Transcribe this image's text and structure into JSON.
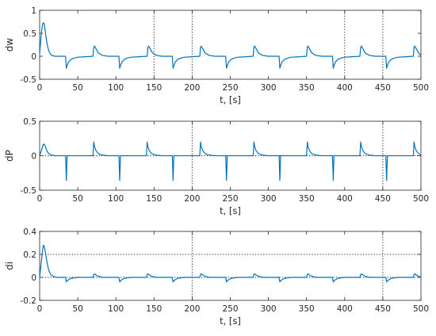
{
  "chart_data": [
    {
      "type": "line",
      "ylabel": "dw",
      "xlabel": "t, [s]",
      "xlim": [
        0,
        500
      ],
      "ylim": [
        -0.5,
        1
      ],
      "xticks": [
        "0",
        "50",
        "100",
        "150",
        "200",
        "250",
        "300",
        "350",
        "400",
        "450",
        "500"
      ],
      "yticks": [
        "-0.5",
        "0",
        "0.5",
        "1"
      ],
      "color": "#0072BD",
      "vlines": [
        150,
        200,
        400,
        450
      ],
      "hlines": [],
      "series": [
        {
          "x": [
            0,
            1,
            2,
            3,
            4,
            5,
            6,
            7,
            8,
            10,
            12,
            14,
            16,
            20,
            25,
            30,
            34,
            35,
            36,
            38,
            41,
            45,
            50,
            60,
            70,
            71,
            72,
            74,
            77,
            82,
            90,
            100,
            104,
            105,
            106,
            108,
            111,
            115,
            120,
            130,
            141,
            142,
            143,
            145,
            148,
            153,
            160,
            170,
            174,
            175,
            176,
            178,
            181,
            185,
            190,
            200,
            210,
            211,
            212,
            214,
            217,
            222,
            230,
            240,
            244,
            245,
            246,
            248,
            251,
            255,
            260,
            270,
            280,
            281,
            282,
            284,
            287,
            292,
            300,
            310,
            314,
            315,
            316,
            318,
            321,
            325,
            330,
            340,
            350,
            351,
            352,
            354,
            357,
            362,
            370,
            380,
            384,
            385,
            386,
            388,
            391,
            395,
            400,
            410,
            420,
            421,
            422,
            424,
            427,
            432,
            440,
            450,
            454,
            455,
            456,
            458,
            461,
            465,
            470,
            480,
            490,
            491,
            492,
            494,
            497,
            500
          ],
          "y": [
            0.05,
            0.25,
            0.45,
            0.6,
            0.7,
            0.73,
            0.7,
            0.6,
            0.45,
            0.25,
            0.12,
            0.05,
            0.02,
            0.0,
            0.0,
            0.0,
            0.0,
            -0.26,
            -0.2,
            -0.12,
            -0.07,
            -0.04,
            -0.02,
            -0.01,
            0.0,
            0.2,
            0.22,
            0.16,
            0.07,
            0.02,
            0.0,
            0.0,
            0.0,
            -0.26,
            -0.2,
            -0.12,
            -0.07,
            -0.04,
            -0.02,
            -0.01,
            0.0,
            0.2,
            0.22,
            0.16,
            0.07,
            0.02,
            0.0,
            0.0,
            0.0,
            -0.26,
            -0.2,
            -0.12,
            -0.07,
            -0.04,
            -0.02,
            -0.01,
            0.0,
            0.2,
            0.22,
            0.16,
            0.07,
            0.02,
            0.0,
            0.0,
            0.0,
            -0.26,
            -0.2,
            -0.12,
            -0.07,
            -0.04,
            -0.02,
            -0.01,
            0.0,
            0.2,
            0.22,
            0.16,
            0.07,
            0.02,
            0.0,
            0.0,
            0.0,
            -0.26,
            -0.2,
            -0.12,
            -0.07,
            -0.04,
            -0.02,
            -0.01,
            0.0,
            0.2,
            0.22,
            0.16,
            0.07,
            0.02,
            0.0,
            0.0,
            0.0,
            -0.26,
            -0.2,
            -0.12,
            -0.07,
            -0.04,
            -0.02,
            -0.01,
            0.0,
            0.2,
            0.22,
            0.16,
            0.07,
            0.02,
            0.0,
            0.0,
            0.0,
            -0.26,
            -0.2,
            -0.12,
            -0.07,
            -0.04,
            -0.02,
            -0.01,
            0.0,
            0.2,
            0.22,
            0.16,
            0.07,
            0.02
          ]
        }
      ]
    },
    {
      "type": "line",
      "ylabel": "dP",
      "xlabel": "t, [s]",
      "xlim": [
        0,
        500
      ],
      "ylim": [
        -0.5,
        0.5
      ],
      "xticks": [
        "0",
        "50",
        "100",
        "150",
        "200",
        "250",
        "300",
        "350",
        "400",
        "450",
        "500"
      ],
      "yticks": [
        "-0.5",
        "0",
        "0.5"
      ],
      "color": "#0072BD",
      "vlines": [
        200,
        450
      ],
      "hlines": [
        0
      ],
      "series": [
        {
          "x": [
            0,
            3,
            5,
            7,
            9,
            12,
            15,
            20,
            34,
            35,
            36,
            40,
            70,
            71,
            72,
            74,
            77,
            82,
            90,
            104,
            105,
            106,
            110,
            140,
            141,
            142,
            144,
            147,
            152,
            160,
            174,
            175,
            176,
            180,
            210,
            211,
            212,
            214,
            217,
            222,
            230,
            244,
            245,
            246,
            250,
            280,
            281,
            282,
            284,
            287,
            292,
            300,
            314,
            315,
            316,
            320,
            350,
            351,
            352,
            354,
            357,
            362,
            370,
            384,
            385,
            386,
            390,
            420,
            421,
            422,
            424,
            427,
            432,
            440,
            454,
            455,
            456,
            460,
            490,
            491,
            492,
            494,
            497,
            500
          ],
          "y": [
            0.0,
            0.1,
            0.17,
            0.15,
            0.08,
            0.03,
            0.01,
            0.0,
            0.0,
            -0.36,
            0.0,
            0.0,
            0.0,
            0.2,
            0.13,
            0.07,
            0.03,
            0.01,
            0.0,
            0.0,
            -0.36,
            0.0,
            0.0,
            0.0,
            0.2,
            0.13,
            0.07,
            0.03,
            0.01,
            0.0,
            0.0,
            -0.36,
            0.0,
            0.0,
            0.0,
            0.2,
            0.13,
            0.07,
            0.03,
            0.01,
            0.0,
            0.0,
            -0.36,
            0.0,
            0.0,
            0.0,
            0.2,
            0.13,
            0.07,
            0.03,
            0.01,
            0.0,
            0.0,
            -0.36,
            0.0,
            0.0,
            0.0,
            0.2,
            0.13,
            0.07,
            0.03,
            0.01,
            0.0,
            0.0,
            -0.36,
            0.0,
            0.0,
            0.0,
            0.2,
            0.13,
            0.07,
            0.03,
            0.01,
            0.0,
            0.0,
            -0.36,
            0.0,
            0.0,
            0.0,
            0.2,
            0.13,
            0.07,
            0.03,
            0.01
          ]
        }
      ]
    },
    {
      "type": "line",
      "ylabel": "di",
      "xlabel": "t, [s]",
      "xlim": [
        0,
        500
      ],
      "ylim": [
        -0.2,
        0.4
      ],
      "xticks": [
        "0",
        "50",
        "100",
        "150",
        "200",
        "250",
        "300",
        "350",
        "400",
        "450",
        "500"
      ],
      "yticks": [
        "-0.2",
        "0",
        "0.2",
        "0.4"
      ],
      "color": "#0072BD",
      "vlines": [
        200,
        450
      ],
      "hlines": [
        0.2,
        0
      ],
      "series": [
        {
          "x": [
            0,
            2,
            4,
            5,
            6,
            8,
            10,
            12,
            15,
            18,
            22,
            30,
            34,
            35,
            36,
            38,
            41,
            45,
            50,
            60,
            70,
            71,
            72,
            74,
            77,
            82,
            90,
            100,
            104,
            105,
            106,
            108,
            111,
            115,
            120,
            130,
            140,
            141,
            142,
            144,
            147,
            152,
            160,
            170,
            174,
            175,
            176,
            178,
            181,
            185,
            190,
            200,
            210,
            211,
            212,
            214,
            217,
            222,
            230,
            240,
            244,
            245,
            246,
            248,
            251,
            255,
            260,
            270,
            280,
            281,
            282,
            284,
            287,
            292,
            300,
            310,
            314,
            315,
            316,
            318,
            321,
            325,
            330,
            340,
            350,
            351,
            352,
            354,
            357,
            362,
            370,
            380,
            384,
            385,
            386,
            388,
            391,
            395,
            400,
            410,
            420,
            421,
            422,
            424,
            427,
            432,
            440,
            450,
            454,
            455,
            456,
            458,
            461,
            465,
            470,
            480,
            490,
            491,
            492,
            494,
            497,
            500
          ],
          "y": [
            0.0,
            0.12,
            0.24,
            0.28,
            0.27,
            0.2,
            0.12,
            0.06,
            0.02,
            0.01,
            0.0,
            0.0,
            0.0,
            -0.04,
            -0.03,
            -0.02,
            -0.01,
            -0.005,
            0.0,
            0.0,
            0.0,
            0.025,
            0.03,
            0.02,
            0.01,
            0.0,
            0.0,
            0.0,
            0.0,
            -0.04,
            -0.03,
            -0.02,
            -0.01,
            -0.005,
            0.0,
            0.0,
            0.0,
            0.025,
            0.03,
            0.02,
            0.01,
            0.0,
            0.0,
            0.0,
            0.0,
            -0.04,
            -0.03,
            -0.02,
            -0.01,
            -0.005,
            0.0,
            0.0,
            0.0,
            0.025,
            0.03,
            0.02,
            0.01,
            0.0,
            0.0,
            0.0,
            0.0,
            -0.04,
            -0.03,
            -0.02,
            -0.01,
            -0.005,
            0.0,
            0.0,
            0.0,
            0.025,
            0.03,
            0.02,
            0.01,
            0.0,
            0.0,
            0.0,
            0.0,
            -0.04,
            -0.03,
            -0.02,
            -0.01,
            -0.005,
            0.0,
            0.0,
            0.0,
            0.025,
            0.03,
            0.02,
            0.01,
            0.0,
            0.0,
            0.0,
            0.0,
            -0.04,
            -0.03,
            -0.02,
            -0.01,
            -0.005,
            0.0,
            0.0,
            0.0,
            0.025,
            0.03,
            0.02,
            0.01,
            0.0,
            0.0,
            0.0,
            0.0,
            -0.04,
            -0.03,
            -0.02,
            -0.01,
            -0.005,
            0.0,
            0.0,
            0.0,
            0.025,
            0.03,
            0.02,
            0.01,
            0.0
          ]
        }
      ]
    }
  ]
}
